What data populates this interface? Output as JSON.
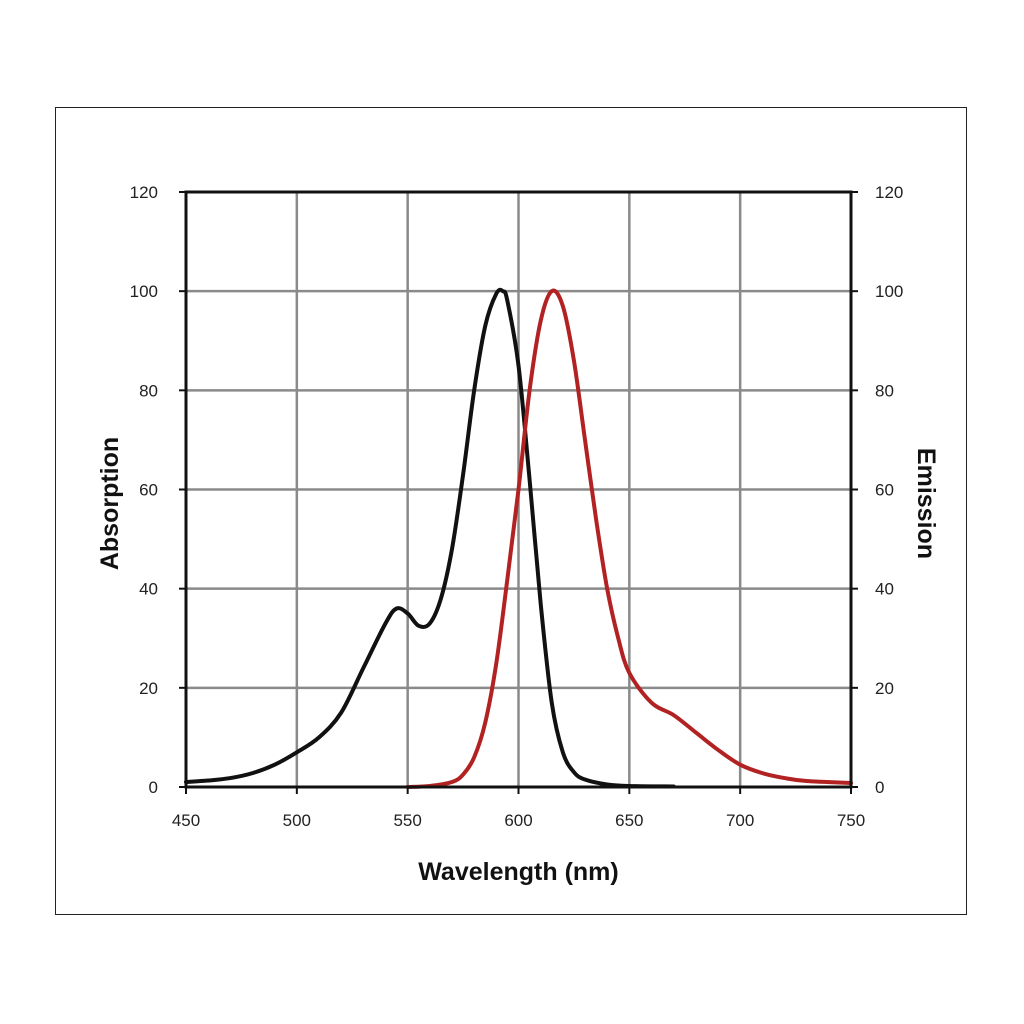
{
  "chart_data": {
    "type": "line",
    "title": "",
    "xlabel": "Wavelength (nm)",
    "ylabel": "Absorption",
    "y2label": "Emission",
    "xlim": [
      450,
      750
    ],
    "ylim": [
      0,
      120
    ],
    "y2lim": [
      0,
      120
    ],
    "x_ticks": [
      "450",
      "500",
      "550",
      "600",
      "650",
      "700",
      "750"
    ],
    "y_ticks": [
      "0",
      "20",
      "40",
      "60",
      "80",
      "100",
      "120"
    ],
    "y2_ticks": [
      "0",
      "20",
      "40",
      "60",
      "80",
      "100",
      "120"
    ],
    "grid": true,
    "legend": "none",
    "series": [
      {
        "color": "#111111",
        "axis": "left",
        "x": [
          450,
          460,
          470,
          480,
          490,
          500,
          510,
          520,
          530,
          540,
          545,
          550,
          555,
          560,
          565,
          570,
          575,
          580,
          585,
          590,
          593,
          595,
          600,
          605,
          610,
          615,
          620,
          625,
          630,
          640,
          650,
          670
        ],
        "y": [
          1,
          1.3,
          1.8,
          2.8,
          4.5,
          7,
          10,
          15,
          24,
          33,
          36,
          35,
          32.5,
          33,
          38,
          48,
          63,
          80,
          93,
          99.5,
          100,
          98,
          85,
          62,
          37,
          17,
          7,
          3,
          1.5,
          0.5,
          0.2,
          0.1
        ]
      },
      {
        "color": "#b22222",
        "axis": "right",
        "x": [
          550,
          560,
          570,
          575,
          580,
          585,
          590,
          595,
          600,
          605,
          610,
          615,
          620,
          625,
          630,
          635,
          640,
          645,
          650,
          660,
          670,
          680,
          690,
          700,
          710,
          720,
          730,
          750
        ],
        "y": [
          0,
          0.2,
          1,
          2.5,
          6,
          13,
          25,
          42,
          60,
          80,
          94,
          100,
          97,
          86,
          70,
          54,
          40,
          30,
          23,
          17,
          14.5,
          11,
          7.5,
          4.5,
          2.8,
          1.8,
          1.2,
          0.8
        ]
      }
    ]
  }
}
